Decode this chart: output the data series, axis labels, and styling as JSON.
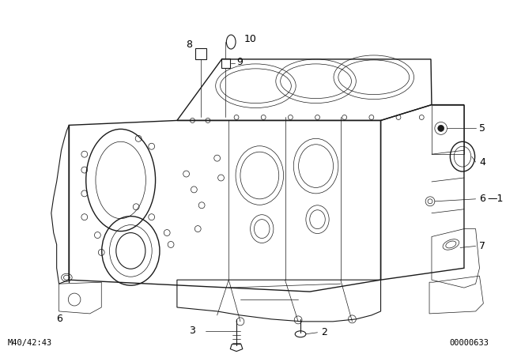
{
  "bg_color": "#ffffff",
  "fig_width": 6.4,
  "fig_height": 4.48,
  "dpi": 100,
  "bottom_left_text": "M40/42:43",
  "bottom_right_text": "00000633",
  "label_fontsize": 9,
  "note_fontsize": 7.5
}
